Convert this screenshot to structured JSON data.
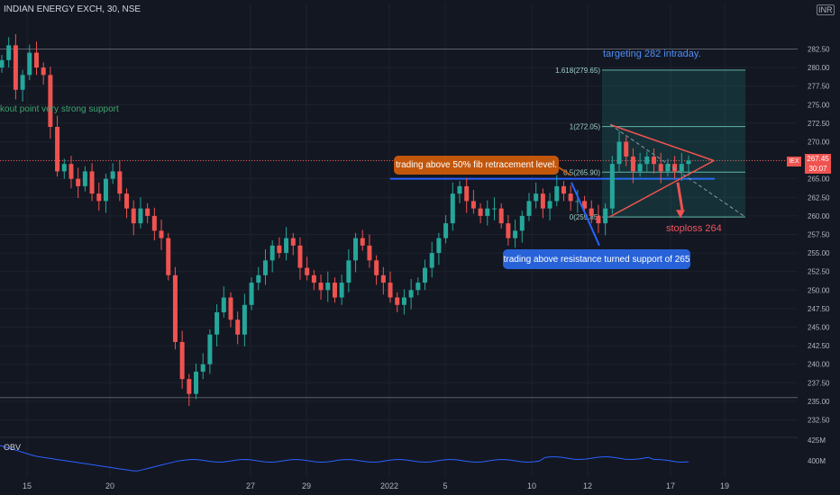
{
  "header": {
    "symbol_title": "INDIAN ENERGY EXCH, 30, NSE",
    "currency": "INR"
  },
  "last_price": {
    "label": "IEX",
    "value": "267.45",
    "countdown": "30:07",
    "color": "#ef5350"
  },
  "annotations": {
    "fib_note": "trading above 50% fib retracement level.",
    "support_note": "trading above resistance turned support of 265",
    "target_note": "targeting 282 intraday.",
    "stoploss_note": "stoploss 264",
    "breakout_note": "breakout point very strong support"
  },
  "fib_levels": [
    {
      "label": "1.618(279.65)",
      "price": 279.65
    },
    {
      "label": "1(272.05)",
      "price": 272.05
    },
    {
      "label": "0.5(265.90)",
      "price": 265.9
    },
    {
      "label": "0(259.85)",
      "price": 259.85
    }
  ],
  "obv": {
    "label": "OBV",
    "ticks": [
      "425M",
      "400M"
    ]
  },
  "colors": {
    "up": "#26a69a",
    "down": "#ef5350",
    "background": "#131722",
    "accent": "#2962ff"
  },
  "chart_data": {
    "type": "candlestick",
    "title": "INDIAN ENERGY EXCH, 30, NSE",
    "ylim": [
      230.5,
      288.5
    ],
    "y_ticks": [
      282.5,
      280,
      277.5,
      275,
      272.5,
      270,
      267.5,
      265,
      262.5,
      260,
      257.5,
      255,
      252.5,
      250,
      247.5,
      245,
      242.5,
      240,
      237.5,
      235,
      232.5
    ],
    "x_tick_labels": [
      "15",
      "20",
      "27",
      "29",
      "2022",
      "5",
      "10",
      "12",
      "17",
      "19"
    ],
    "horizontal_levels": [
      282.5,
      267.45,
      265,
      235.5
    ],
    "price_path": [
      281,
      283,
      277,
      279,
      282,
      280,
      279,
      272,
      266,
      267,
      265,
      264,
      266,
      263,
      262,
      265,
      266,
      263,
      261,
      259,
      261,
      260,
      258,
      257,
      252,
      243,
      238,
      236,
      239,
      240,
      244,
      247,
      249,
      246,
      244,
      248,
      251,
      252,
      254,
      256,
      255,
      257,
      256,
      253,
      252,
      251,
      250,
      251,
      249,
      251,
      254,
      257,
      256,
      254,
      252,
      251,
      249,
      248,
      249,
      250,
      251,
      253,
      255,
      257,
      259,
      263,
      264,
      262,
      261,
      260,
      261,
      261,
      259,
      257,
      258,
      260,
      262,
      263,
      261,
      262,
      264,
      263,
      262,
      262,
      261,
      260,
      259,
      261,
      267,
      270,
      268,
      266,
      267,
      268,
      267,
      266,
      267,
      266,
      267,
      267.45
    ],
    "x_range_days": [
      "15",
      "19"
    ]
  }
}
